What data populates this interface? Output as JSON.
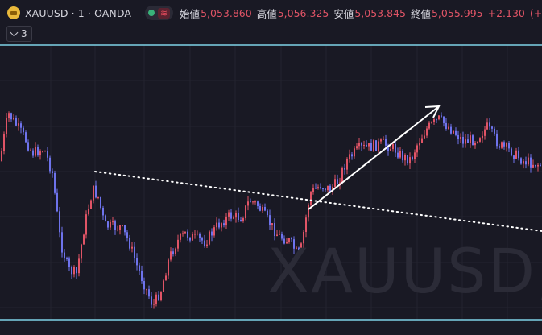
{
  "header": {
    "symbol_title": "XAUUSD · 1 · OANDA",
    "wave_glyph": "≋",
    "ohlc": [
      {
        "label": "始値",
        "value": "5,053.860"
      },
      {
        "label": "高値",
        "value": "5,056.325"
      },
      {
        "label": "安値",
        "value": "5,053.845"
      },
      {
        "label": "終値",
        "value": "5,055.995"
      }
    ],
    "change": "+2.130",
    "change_pct_partial": "(+"
  },
  "controls": {
    "indicator_count": "3"
  },
  "watermark": "XAUUSD,",
  "colors": {
    "background": "#191924",
    "up_candle": "#e05466",
    "down_candle": "#6e73ec",
    "horizontal_line": "#7fd3e6",
    "drawing": "#ffffff",
    "status_green": "#39b27a"
  },
  "chart_data": {
    "type": "candlestick",
    "symbol": "XAUUSD",
    "interval": "1",
    "source": "OANDA",
    "last": {
      "open": 5053.86,
      "high": 5056.325,
      "low": 5053.845,
      "close": 5055.995,
      "change": 2.13
    },
    "drawings": [
      "two horizontal lines",
      "dotted trend line",
      "arrow"
    ],
    "grid": true
  }
}
